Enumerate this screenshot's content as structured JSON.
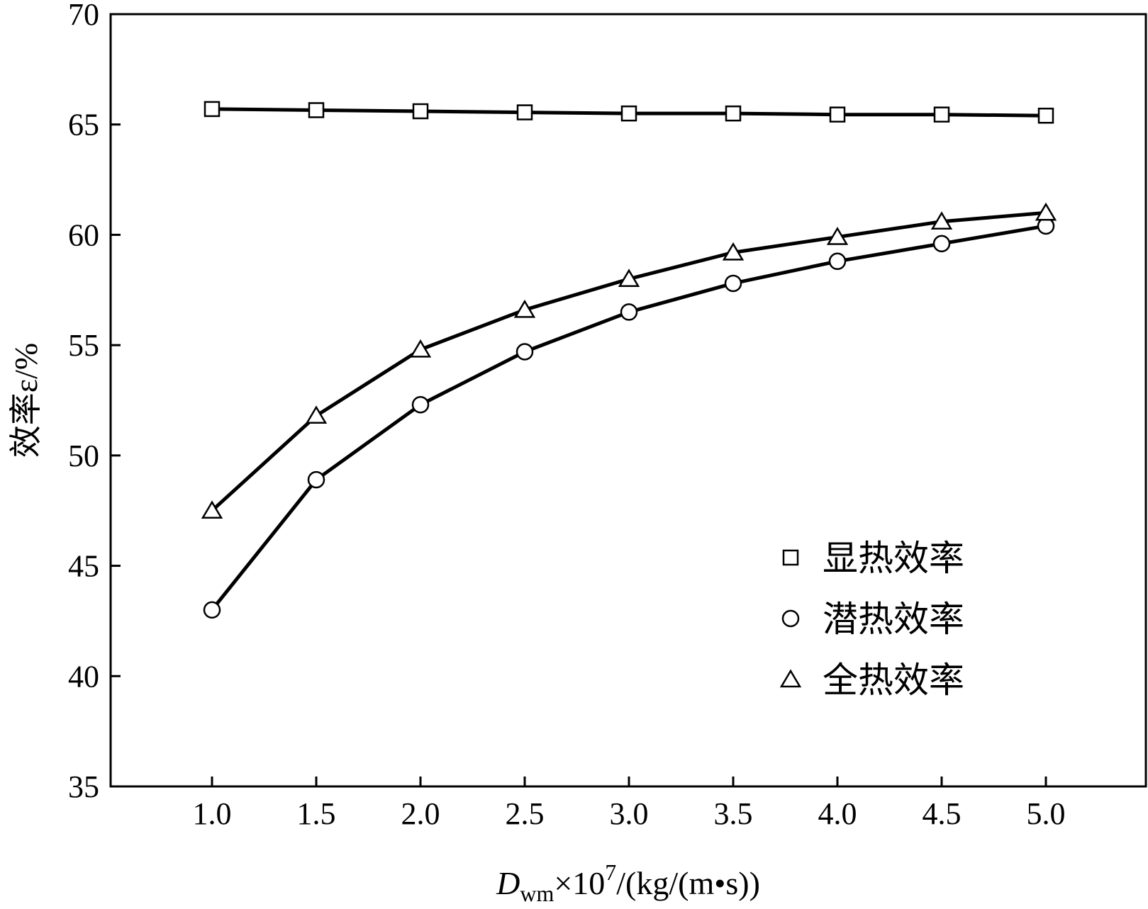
{
  "chart_data": {
    "type": "line",
    "title": "",
    "xlabel": {
      "main": "D",
      "sub": "wm",
      "mid": "×10",
      "sup": "7",
      "tail": "/(kg/(m•s))"
    },
    "ylabel": "效率ε/%",
    "xlim": [
      0.5,
      5.5
    ],
    "ylim": [
      35,
      70
    ],
    "x_ticks": [
      "1.0",
      "1.5",
      "2.0",
      "2.5",
      "3.0",
      "3.5",
      "4.0",
      "4.5",
      "5.0"
    ],
    "y_ticks": [
      "35",
      "40",
      "45",
      "50",
      "55",
      "60",
      "65",
      "70"
    ],
    "grid": false,
    "legend_position": "lower-right",
    "line_color": "#000000",
    "series": [
      {
        "name": "显热效率",
        "marker": "square",
        "x": [
          1.0,
          1.5,
          2.0,
          2.5,
          3.0,
          3.5,
          4.0,
          4.5,
          5.0
        ],
        "y": [
          65.7,
          65.65,
          65.6,
          65.55,
          65.5,
          65.5,
          65.45,
          65.45,
          65.4
        ]
      },
      {
        "name": "潜热效率",
        "marker": "circle",
        "x": [
          1.0,
          1.5,
          2.0,
          2.5,
          3.0,
          3.5,
          4.0,
          4.5,
          5.0
        ],
        "y": [
          43.0,
          48.9,
          52.3,
          54.7,
          56.5,
          57.8,
          58.8,
          59.6,
          60.4
        ]
      },
      {
        "name": "全热效率",
        "marker": "triangle",
        "x": [
          1.0,
          1.5,
          2.0,
          2.5,
          3.0,
          3.5,
          4.0,
          4.5,
          5.0
        ],
        "y": [
          47.5,
          51.8,
          54.8,
          56.6,
          58.0,
          59.2,
          59.9,
          60.6,
          61.0
        ]
      }
    ]
  }
}
